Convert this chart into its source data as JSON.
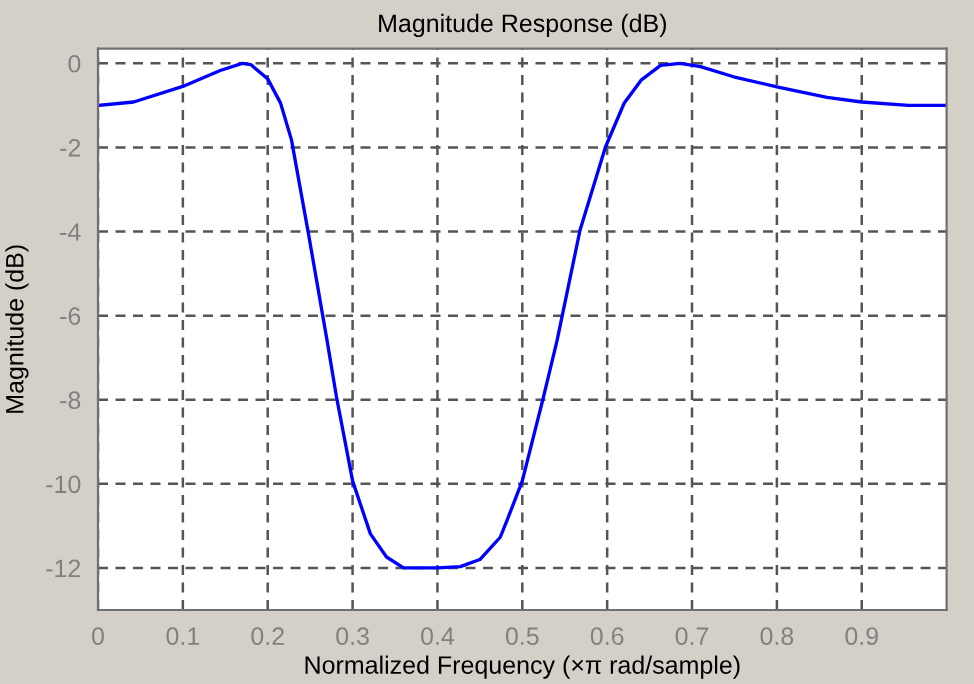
{
  "chart_data": {
    "type": "line",
    "title": "Magnitude Response (dB)",
    "xlabel": "Normalized Frequency (×π rad/sample)",
    "ylabel": "Magnitude (dB)",
    "x": [
      0,
      0.042,
      0.1,
      0.144,
      0.17,
      0.18,
      0.2,
      0.215,
      0.228,
      0.248,
      0.27,
      0.281,
      0.3,
      0.321,
      0.34,
      0.36,
      0.4,
      0.427,
      0.45,
      0.474,
      0.482,
      0.5,
      0.525,
      0.541,
      0.568,
      0.598,
      0.62,
      0.64,
      0.663,
      0.686,
      0.71,
      0.749,
      0.8,
      0.859,
      0.9,
      0.955,
      1.0
    ],
    "series": [
      {
        "color": "#0000ff",
        "values": [
          -1.0,
          -0.92,
          -0.55,
          -0.17,
          0,
          -0.03,
          -0.37,
          -0.94,
          -1.82,
          -4.05,
          -6.6,
          -7.93,
          -9.93,
          -11.19,
          -11.74,
          -12.0,
          -12.0,
          -11.97,
          -11.8,
          -11.27,
          -10.87,
          -9.93,
          -7.93,
          -6.59,
          -3.97,
          -1.99,
          -0.95,
          -0.4,
          -0.05,
          0,
          -0.08,
          -0.32,
          -0.56,
          -0.81,
          -0.92,
          -1.0,
          -1.0
        ]
      }
    ],
    "xlim": [
      0,
      1
    ],
    "xticks": [
      0,
      0.1,
      0.2,
      0.3,
      0.4,
      0.5,
      0.6,
      0.7,
      0.8,
      0.9
    ],
    "ylim": [
      -13,
      0.35
    ],
    "yticks": [
      -12,
      -10,
      -8,
      -6,
      -4,
      -2,
      0
    ],
    "grid": true,
    "line_style": "solid",
    "marker": "none"
  }
}
